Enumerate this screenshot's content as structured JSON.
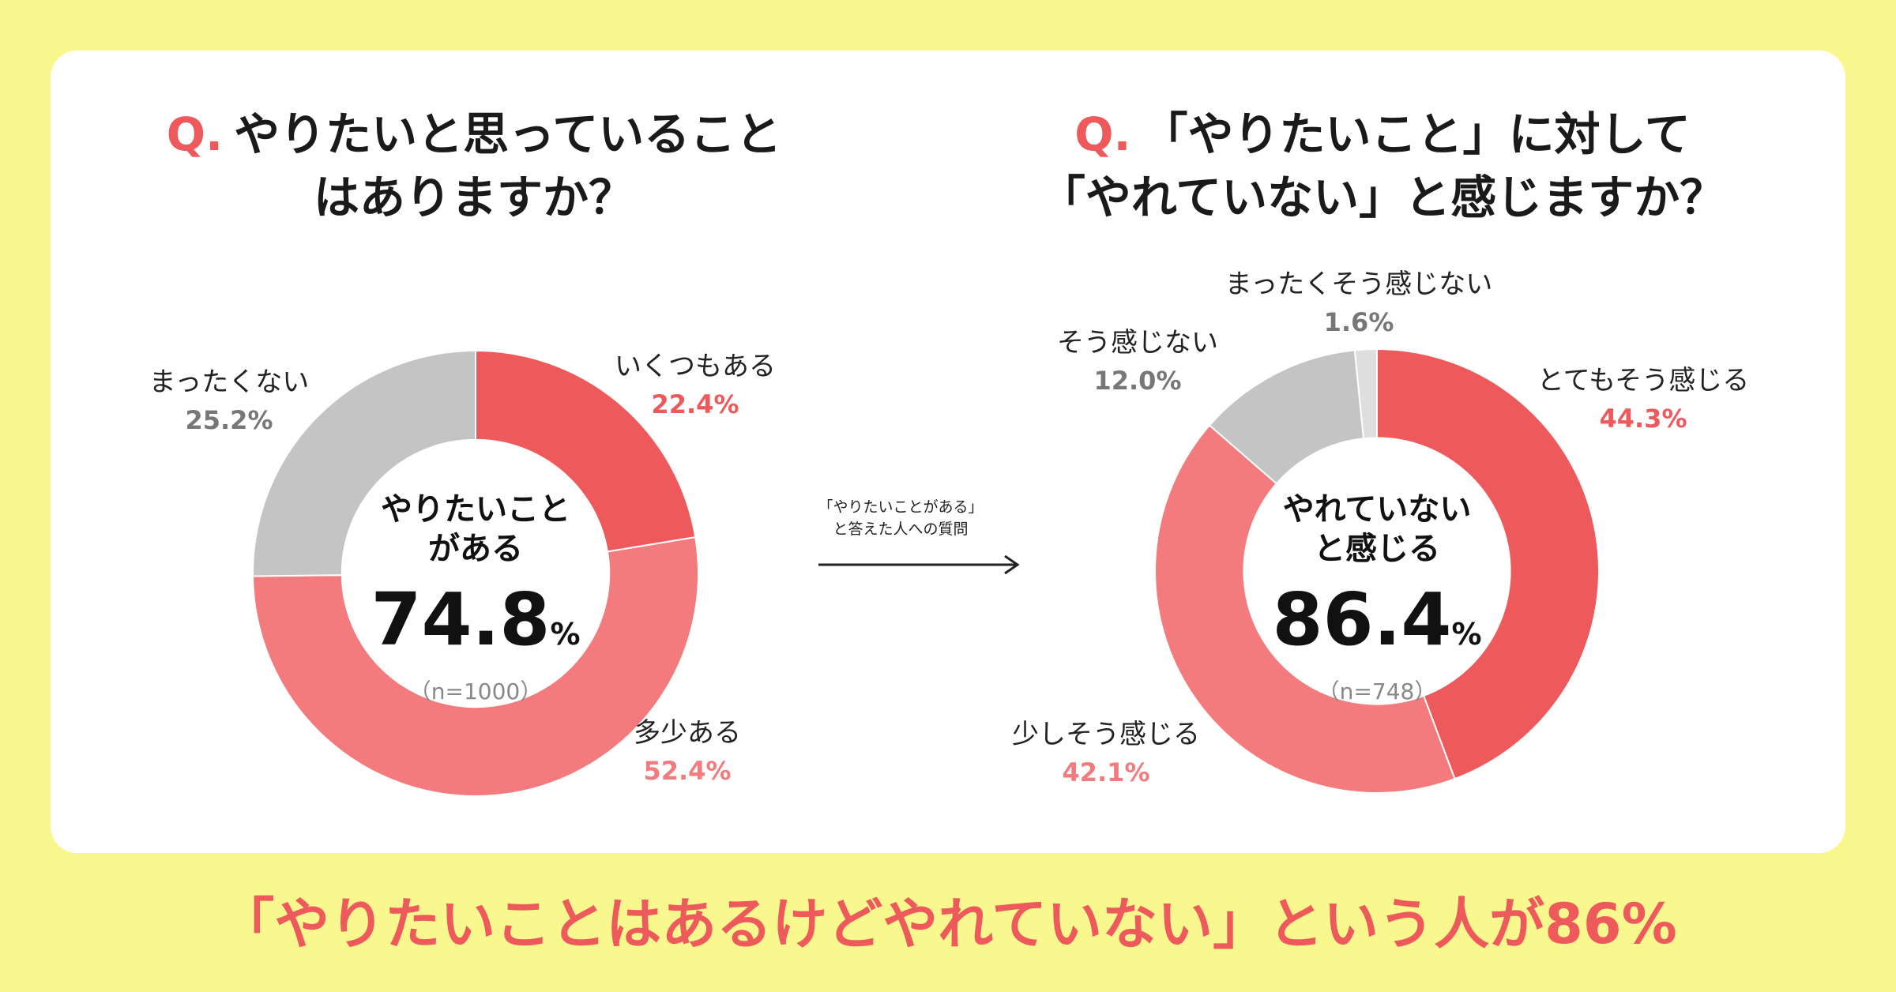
{
  "colors": {
    "background": "#f8f88e",
    "card": "#ffffff",
    "accent": "#ee5a5c",
    "light_red": "#f47b7d",
    "gray": "#c4c4c4",
    "light_gray": "#dedede"
  },
  "chart1": {
    "q_prefix": "Q.",
    "title_line1": "やりたいと思っていること",
    "title_line2": "はありますか？",
    "center_line1": "やりたいこと",
    "center_line2": "がある",
    "center_value": "74.8",
    "center_unit": "%",
    "center_note": "（n=1000）"
  },
  "chart2": {
    "q_prefix": "Q.",
    "title_line1": "「やりたいこと」に対して",
    "title_line2": "「やれていない」と感じますか？",
    "center_line1": "やれていない",
    "center_line2": "と感じる",
    "center_value": "86.4",
    "center_unit": "%",
    "center_note": "（n=748）"
  },
  "arrow_note": {
    "line1": "「やりたいことがある」",
    "line2": "と答えた人への質問"
  },
  "headline": "「やりたいことはあるけどやれていない」という人が86%",
  "chart_data": [
    {
      "type": "pie",
      "donut": true,
      "start": "top, clockwise",
      "slices": [
        {
          "label": "いくつもある",
          "value": 22.4,
          "display": "22.4%",
          "color": "#ee5a5c"
        },
        {
          "label": "多少ある",
          "value": 52.4,
          "display": "52.4%",
          "color": "#f47b7d"
        },
        {
          "label": "まったくない",
          "value": 25.2,
          "display": "25.2%",
          "color": "#c4c4c4"
        }
      ]
    },
    {
      "type": "pie",
      "donut": true,
      "start": "top, clockwise",
      "slices": [
        {
          "label": "とてもそう感じる",
          "value": 44.3,
          "display": "44.3%",
          "color": "#ee5a5c"
        },
        {
          "label": "少しそう感じる",
          "value": 42.1,
          "display": "42.1%",
          "color": "#f47b7d"
        },
        {
          "label": "そう感じない",
          "value": 12.0,
          "display": "12.0%",
          "color": "#c4c4c4"
        },
        {
          "label": "まったくそう感じない",
          "value": 1.6,
          "display": "1.6%",
          "color": "#dedede"
        }
      ]
    }
  ]
}
